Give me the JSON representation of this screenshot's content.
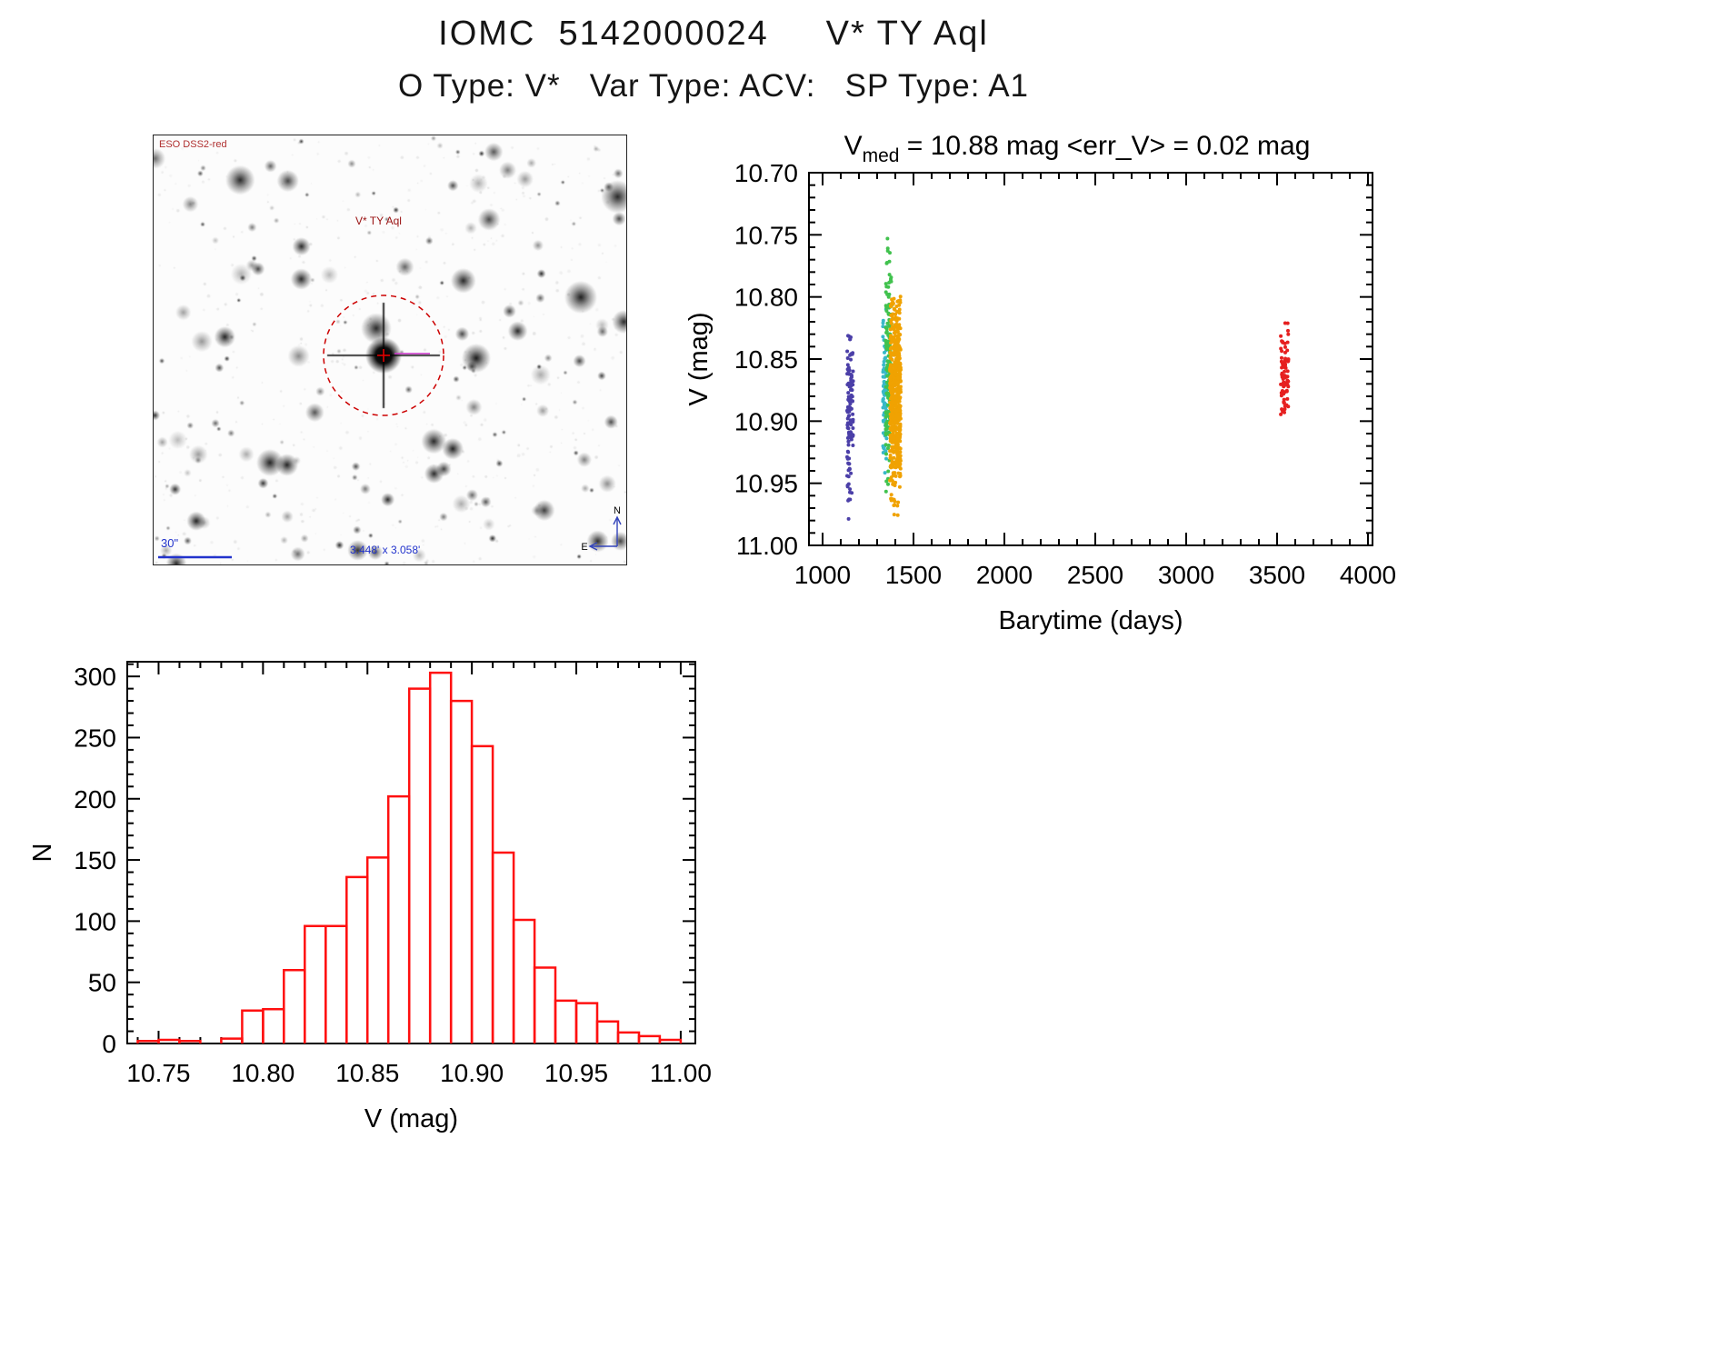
{
  "header": {
    "title": "IOMC  5142000024     V* TY Aql",
    "subtitle": "O Type: V*   Var Type: ACV:   SP Type: A1"
  },
  "finder": {
    "survey_label": "ESO DSS2-red",
    "target_label": "V* TY Aql",
    "scale_label": "30\"",
    "fov_label": "3.448' x 3.058'",
    "compass_n": "N",
    "compass_e": "E"
  },
  "chart_data": [
    {
      "id": "lightcurve",
      "type": "scatter",
      "title": {
        "var": "V",
        "sub": "med",
        "rest": " =  10.88 mag <err_V> =  0.02 mag"
      },
      "xlabel": "Barytime (days)",
      "ylabel": "V (mag)",
      "xlim": [
        925,
        4025
      ],
      "ylim": [
        10.7,
        11.0
      ],
      "y_inverted": true,
      "x_minor": 100,
      "y_minor": 0.01,
      "xticks": {
        "values": [
          1000,
          1500,
          2000,
          2500,
          3000,
          3500,
          4000
        ],
        "labels": [
          "1000",
          "1500",
          "2000",
          "2500",
          "3000",
          "3500",
          "4000"
        ]
      },
      "yticks": {
        "values": [
          10.7,
          10.75,
          10.8,
          10.85,
          10.9,
          10.95,
          11.0
        ],
        "labels": [
          "10.70",
          "10.75",
          "10.80",
          "10.85",
          "10.90",
          "10.95",
          "11.00"
        ]
      },
      "stats": {
        "v_med_mag": 10.88,
        "err_v_mag": 0.02
      },
      "clusters": [
        {
          "name": "epoch-1-purple",
          "color": "#4b3fa8",
          "x_range": [
            1135,
            1168
          ],
          "v_mean": 10.888,
          "v_sigma": 0.03,
          "v_range": [
            10.82,
            11.005
          ],
          "n": 120
        },
        {
          "name": "epoch-2-cyan",
          "color": "#38b8c8",
          "x_range": [
            1332,
            1354
          ],
          "v_mean": 10.87,
          "v_sigma": 0.032,
          "v_range": [
            10.8,
            10.95
          ],
          "n": 90
        },
        {
          "name": "epoch-2-green",
          "color": "#41c24e",
          "x_range": [
            1346,
            1380
          ],
          "v_mean": 10.855,
          "v_sigma": 0.045,
          "v_range": [
            10.745,
            10.96
          ],
          "n": 160
        },
        {
          "name": "epoch-2-orange",
          "color": "#f0a202",
          "x_range": [
            1370,
            1430
          ],
          "v_mean": 10.878,
          "v_sigma": 0.036,
          "v_range": [
            10.795,
            10.98
          ],
          "n": 600
        },
        {
          "name": "epoch-3-red",
          "color": "#e62020",
          "x_range": [
            3520,
            3562
          ],
          "v_mean": 10.858,
          "v_sigma": 0.02,
          "v_range": [
            10.818,
            10.912
          ],
          "n": 85
        }
      ]
    },
    {
      "id": "histogram",
      "type": "bar",
      "xlabel": "V (mag)",
      "ylabel": "N",
      "bar_color": "#ff1010",
      "bin_start": 10.74,
      "bin_width": 0.01,
      "counts": [
        2,
        3,
        2,
        0,
        4,
        27,
        28,
        60,
        96,
        96,
        136,
        152,
        202,
        290,
        303,
        280,
        243,
        156,
        101,
        62,
        35,
        33,
        18,
        9,
        6,
        3
      ],
      "xlim": [
        10.735,
        11.007
      ],
      "ylim": [
        0,
        312
      ],
      "x_minor": 0.01,
      "y_minor": 10,
      "xticks": {
        "values": [
          10.75,
          10.8,
          10.85,
          10.9,
          10.95,
          11.0
        ],
        "labels": [
          "10.75",
          "10.80",
          "10.85",
          "10.90",
          "10.95",
          "11.00"
        ]
      },
      "yticks": {
        "values": [
          0,
          50,
          100,
          150,
          200,
          250,
          300
        ],
        "labels": [
          "0",
          "50",
          "100",
          "150",
          "200",
          "250",
          "300"
        ]
      }
    }
  ]
}
